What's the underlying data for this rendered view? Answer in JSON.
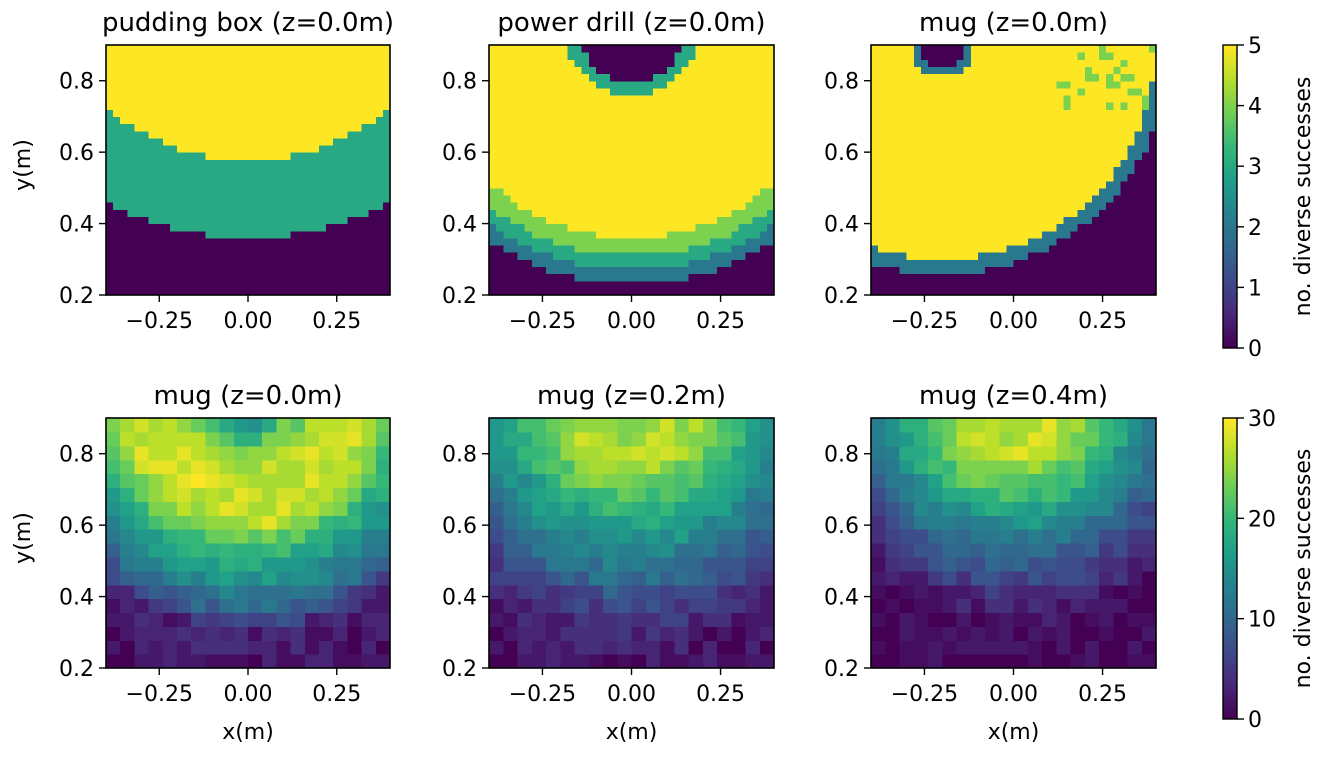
{
  "chart_data": [
    {
      "type": "heatmap",
      "title": "pudding box (z=0.0m)",
      "xlabel": "",
      "ylabel": "y(m)",
      "xlim": [
        -0.4,
        0.4
      ],
      "ylim": [
        0.2,
        0.9
      ],
      "xticks": [
        -0.25,
        0.0,
        0.25
      ],
      "xtick_labels": [
        "−0.25",
        "0.00",
        "0.25"
      ],
      "yticks": [
        0.2,
        0.4,
        0.6,
        0.8
      ],
      "ytick_labels": [
        "0.2",
        "0.4",
        "0.6",
        "0.8"
      ],
      "value_range": [
        0,
        5
      ],
      "colorbar_label": "no. diverse successes",
      "grid": [
        40,
        35
      ],
      "model": {
        "kind": "ring",
        "center": [
          0.0,
          1.2
        ],
        "bands": [
          [
            0.62,
            5
          ],
          [
            0.84,
            3
          ],
          [
            0.78,
            2
          ]
        ],
        "outer": 0,
        "noise": 0
      }
    },
    {
      "type": "heatmap",
      "title": "power drill (z=0.0m)",
      "xlabel": "",
      "ylabel": "",
      "xlim": [
        -0.4,
        0.4
      ],
      "ylim": [
        0.2,
        0.9
      ],
      "xticks": [
        -0.25,
        0.0,
        0.25
      ],
      "xtick_labels": [
        "−0.25",
        "0.00",
        "0.25"
      ],
      "yticks": [
        0.2,
        0.4,
        0.6,
        0.8
      ],
      "ytick_labels": [
        "0.2",
        "0.4",
        "0.6",
        "0.8"
      ],
      "value_range": [
        0,
        5
      ],
      "colorbar_label": "no. diverse successes",
      "grid": [
        40,
        35
      ],
      "model": {
        "kind": "ring",
        "center": [
          0.0,
          0.95
        ],
        "bands": [
          [
            0.15,
            0
          ],
          [
            0.19,
            3
          ],
          [
            0.59,
            5
          ],
          [
            0.64,
            4
          ],
          [
            0.68,
            3
          ],
          [
            0.72,
            2
          ]
        ],
        "outer": 0,
        "noise": 0
      }
    },
    {
      "type": "heatmap",
      "title": "mug (z=0.0m)",
      "xlabel": "",
      "ylabel": "",
      "xlim": [
        -0.4,
        0.4
      ],
      "ylim": [
        0.2,
        0.9
      ],
      "xticks": [
        -0.25,
        0.0,
        0.25
      ],
      "xtick_labels": [
        "−0.25",
        "0.00",
        "0.25"
      ],
      "yticks": [
        0.2,
        0.4,
        0.6,
        0.8
      ],
      "ytick_labels": [
        "0.2",
        "0.4",
        "0.6",
        "0.8"
      ],
      "value_range": [
        0,
        5
      ],
      "colorbar_label": "no. diverse successes",
      "grid": [
        40,
        35
      ],
      "model": {
        "kind": "ring",
        "center": [
          -0.2,
          0.9
        ],
        "bands": [
          [
            0.06,
            0
          ],
          [
            0.09,
            2
          ],
          [
            0.6,
            5
          ],
          [
            0.64,
            2
          ]
        ],
        "outer": 0,
        "noise": 0.6
      }
    },
    {
      "type": "heatmap",
      "title": "mug (z=0.0m)",
      "xlabel": "x(m)",
      "ylabel": "y(m)",
      "xlim": [
        -0.4,
        0.4
      ],
      "ylim": [
        0.2,
        0.9
      ],
      "xticks": [
        -0.25,
        0.0,
        0.25
      ],
      "xtick_labels": [
        "−0.25",
        "0.00",
        "0.25"
      ],
      "yticks": [
        0.2,
        0.4,
        0.6,
        0.8
      ],
      "ytick_labels": [
        "0.2",
        "0.4",
        "0.6",
        "0.8"
      ],
      "value_range": [
        0,
        30
      ],
      "colorbar_label": "no. diverse successes",
      "grid": [
        20,
        18
      ],
      "model": {
        "kind": "smooth",
        "center": [
          0.0,
          0.95
        ],
        "profile": [
          [
            0.0,
            12
          ],
          [
            0.06,
            15
          ],
          [
            0.12,
            22
          ],
          [
            0.22,
            28
          ],
          [
            0.35,
            27
          ],
          [
            0.42,
            20
          ],
          [
            0.5,
            15
          ],
          [
            0.58,
            10
          ],
          [
            0.65,
            3
          ],
          [
            0.8,
            1
          ]
        ],
        "noise": 2
      }
    },
    {
      "type": "heatmap",
      "title": "mug (z=0.2m)",
      "xlabel": "x(m)",
      "ylabel": "",
      "xlim": [
        -0.4,
        0.4
      ],
      "ylim": [
        0.2,
        0.9
      ],
      "xticks": [
        -0.25,
        0.0,
        0.25
      ],
      "xtick_labels": [
        "−0.25",
        "0.00",
        "0.25"
      ],
      "yticks": [
        0.2,
        0.4,
        0.6,
        0.8
      ],
      "ytick_labels": [
        "0.2",
        "0.4",
        "0.6",
        "0.8"
      ],
      "value_range": [
        0,
        30
      ],
      "colorbar_label": "no. diverse successes",
      "grid": [
        20,
        18
      ],
      "model": {
        "kind": "smooth",
        "center": [
          0.0,
          0.95
        ],
        "profile": [
          [
            0.0,
            22
          ],
          [
            0.1,
            26
          ],
          [
            0.2,
            26
          ],
          [
            0.3,
            20
          ],
          [
            0.4,
            15
          ],
          [
            0.5,
            10
          ],
          [
            0.6,
            5
          ],
          [
            0.7,
            2
          ],
          [
            0.8,
            1
          ]
        ],
        "noise": 2
      }
    },
    {
      "type": "heatmap",
      "title": "mug (z=0.4m)",
      "xlabel": "x(m)",
      "ylabel": "",
      "xlim": [
        -0.4,
        0.4
      ],
      "ylim": [
        0.2,
        0.9
      ],
      "xticks": [
        -0.25,
        0.0,
        0.25
      ],
      "xtick_labels": [
        "−0.25",
        "0.00",
        "0.25"
      ],
      "yticks": [
        0.2,
        0.4,
        0.6,
        0.8
      ],
      "ytick_labels": [
        "0.2",
        "0.4",
        "0.6",
        "0.8"
      ],
      "value_range": [
        0,
        30
      ],
      "colorbar_label": "no. diverse successes",
      "grid": [
        20,
        18
      ],
      "model": {
        "kind": "smooth",
        "center": [
          0.0,
          0.95
        ],
        "profile": [
          [
            0.0,
            27
          ],
          [
            0.15,
            27
          ],
          [
            0.25,
            22
          ],
          [
            0.35,
            15
          ],
          [
            0.45,
            9
          ],
          [
            0.55,
            4
          ],
          [
            0.62,
            1
          ],
          [
            0.8,
            0
          ]
        ],
        "noise": 2
      }
    }
  ],
  "colorbars": [
    {
      "ticks": [
        0,
        1,
        2,
        3,
        4,
        5
      ],
      "tick_labels": [
        "0",
        "1",
        "2",
        "3",
        "4",
        "5"
      ],
      "range": [
        0,
        5
      ],
      "label": "no. diverse successes"
    },
    {
      "ticks": [
        0,
        10,
        20,
        30
      ],
      "tick_labels": [
        "0",
        "10",
        "20",
        "30"
      ],
      "range": [
        0,
        30
      ],
      "label": "no. diverse successes"
    }
  ],
  "colormap": {
    "name": "viridis",
    "stops": [
      "#440154",
      "#482878",
      "#3e4989",
      "#31688e",
      "#26828e",
      "#1f9e89",
      "#35b779",
      "#6ece58",
      "#b5de2b",
      "#fde725"
    ]
  }
}
